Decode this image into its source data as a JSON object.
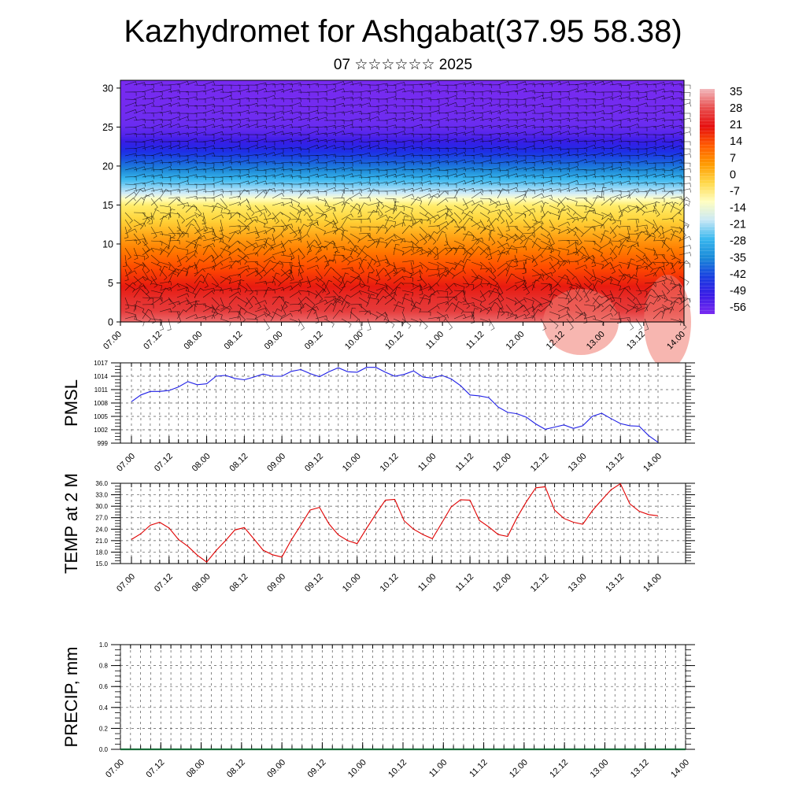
{
  "title": "Kazhydromet for Ashgabat(37.95 58.38)",
  "subtitle": "07 ☆☆☆☆☆☆ 2025",
  "colors": {
    "pmsl_line": "#1f1fe6",
    "temp_line": "#e00000",
    "precip_line": "#1a6e3a",
    "grid": "#555555"
  },
  "colorbar": {
    "labels": [
      "35",
      "28",
      "21",
      "14",
      "7",
      "0",
      "-7",
      "-14",
      "-21",
      "-28",
      "-35",
      "-42",
      "-49",
      "-56"
    ],
    "stops": [
      "#f2b9bd",
      "#e85050",
      "#e60f0f",
      "#ff5a00",
      "#ff9a00",
      "#ffd84a",
      "#fffec0",
      "#c9e8f5",
      "#39b7ef",
      "#1a8ad8",
      "#1940e0",
      "#3a1ce6",
      "#7a2bf0"
    ]
  },
  "chart_data": [
    {
      "id": "upper_air",
      "type": "heatmap",
      "title": "Kazhydromet for Ashgabat(37.95 58.38)",
      "subtitle": "07 ☆☆☆☆☆☆ 2025",
      "x_tick_labels": [
        "07.00",
        "07.12",
        "08.00",
        "08.12",
        "09.00",
        "09.12",
        "10.00",
        "10.12",
        "11.00",
        "11.12",
        "12.00",
        "12.12",
        "13.00",
        "13.12",
        "14.00"
      ],
      "y_ticks": [
        0,
        5,
        10,
        15,
        20,
        25,
        30
      ],
      "ylim": [
        0,
        31
      ],
      "colorbar_range": [
        -56,
        35
      ],
      "profile_levels": [
        0,
        3,
        7,
        11,
        15,
        18,
        21,
        24,
        27,
        31
      ],
      "profile_temps": [
        32,
        28,
        18,
        7,
        -6,
        -24,
        -40,
        -53,
        -60,
        -63
      ],
      "wind_barbs": true
    },
    {
      "id": "pmsl",
      "type": "line",
      "ylabel": "PMSL",
      "x_tick_labels": [
        "07.00",
        "07.12",
        "08.00",
        "08.12",
        "09.00",
        "09.12",
        "10.00",
        "10.12",
        "11.00",
        "11.12",
        "12.00",
        "12.12",
        "13.00",
        "13.12",
        "14.00"
      ],
      "y_ticks": [
        999,
        1002,
        1005,
        1008,
        1011,
        1014,
        1017
      ],
      "ylim": [
        999,
        1017
      ],
      "series": [
        {
          "values": [
            1008.3,
            1009.8,
            1010.6,
            1010.6,
            1010.8,
            1011.6,
            1012.8,
            1012.1,
            1012.3,
            1014.0,
            1014.2,
            1013.5,
            1013.2,
            1013.8,
            1014.5,
            1014.0,
            1014.0,
            1015.1,
            1015.5,
            1014.6,
            1013.9,
            1015.0,
            1015.9,
            1015.0,
            1014.9,
            1016.0,
            1016.0,
            1014.9,
            1014.0,
            1014.4,
            1015.2,
            1013.8,
            1013.6,
            1014.2,
            1013.4,
            1011.9,
            1009.8,
            1009.6,
            1009.2,
            1007.1,
            1005.9,
            1005.6,
            1004.8,
            1003.3,
            1002.1,
            1002.6,
            1003.1,
            1002.3,
            1002.9,
            1005.0,
            1005.7,
            1004.5,
            1003.4,
            1002.9,
            1002.8,
            1000.7,
            999.2
          ]
        }
      ]
    },
    {
      "id": "temp2m",
      "type": "line",
      "ylabel": "TEMP at 2 M",
      "x_tick_labels": [
        "07.00",
        "07.12",
        "08.00",
        "08.12",
        "09.00",
        "09.12",
        "10.00",
        "10.12",
        "11.00",
        "11.12",
        "12.00",
        "12.12",
        "13.00",
        "13.12",
        "14.00"
      ],
      "y_ticks": [
        "15.0",
        "18.0",
        "21.0",
        "24.0",
        "27.0",
        "30.0",
        "33.0",
        "36.0"
      ],
      "ylim": [
        15,
        36
      ],
      "series": [
        {
          "values": [
            21.3,
            22.8,
            25.0,
            25.8,
            24.3,
            21.3,
            19.5,
            17.2,
            15.4,
            18.4,
            21.0,
            23.8,
            24.4,
            21.5,
            18.5,
            17.3,
            16.7,
            21.2,
            25.0,
            29.0,
            29.7,
            25.4,
            22.5,
            21.0,
            20.2,
            24.2,
            28.0,
            31.6,
            31.8,
            26.2,
            24.0,
            22.6,
            21.5,
            25.6,
            29.8,
            31.7,
            31.6,
            26.3,
            24.6,
            22.6,
            22.1,
            27.0,
            31.2,
            34.8,
            35.1,
            29.0,
            26.8,
            25.8,
            25.3,
            28.8,
            31.6,
            34.3,
            35.9,
            30.6,
            28.7,
            27.8,
            27.5
          ]
        }
      ]
    },
    {
      "id": "precip",
      "type": "line",
      "ylabel": "PRECIP, mm",
      "x_tick_labels": [
        "07.00",
        "07.12",
        "08.00",
        "08.12",
        "09.00",
        "09.12",
        "10.00",
        "10.12",
        "11.00",
        "11.12",
        "12.00",
        "12.12",
        "13.00",
        "13.12",
        "14.00"
      ],
      "y_ticks": [
        "0.0",
        "0.2",
        "0.4",
        "0.6",
        "0.8",
        "1.0"
      ],
      "ylim": [
        0,
        1
      ],
      "series": [
        {
          "values": [
            0,
            0,
            0,
            0,
            0,
            0,
            0,
            0,
            0,
            0,
            0,
            0,
            0,
            0,
            0,
            0,
            0,
            0,
            0,
            0,
            0,
            0,
            0,
            0,
            0,
            0,
            0,
            0,
            0
          ]
        }
      ]
    }
  ]
}
